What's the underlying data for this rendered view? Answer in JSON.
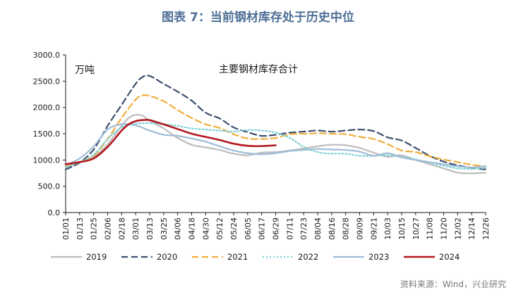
{
  "header": {
    "title": "图表 7：当前钢材库存处于历史中位"
  },
  "footer": {
    "source": "资料来源：Wind，兴业研究"
  },
  "colors": {
    "2019": "#bdbdbd",
    "2020": "#3d4f6e",
    "2021": "#f0ad3c",
    "2022": "#82d2d6",
    "2023": "#9fbcd6",
    "2024": "#b2171d",
    "axis": "#1a1a1a"
  },
  "chart_data": {
    "type": "line",
    "title": "主要钢材库存合计",
    "ylabel": "万吨",
    "xlabel": "",
    "ylim": [
      0,
      3000
    ],
    "yticks": [
      "0.0",
      "500.0",
      "1000.0",
      "1500.0",
      "2000.0",
      "2500.0",
      "3000.0"
    ],
    "yticks_values": [
      0,
      500,
      1000,
      1500,
      2000,
      2500,
      3000
    ],
    "categories": [
      "01/01",
      "01/13",
      "01/25",
      "02/06",
      "02/18",
      "03/01",
      "03/13",
      "03/25",
      "04/06",
      "04/18",
      "04/30",
      "05/12",
      "05/24",
      "06/05",
      "06/17",
      "06/29",
      "07/11",
      "07/23",
      "08/04",
      "08/16",
      "08/28",
      "09/09",
      "09/21",
      "10/03",
      "10/15",
      "10/27",
      "11/08",
      "11/20",
      "12/02",
      "12/14",
      "12/26"
    ],
    "grid": false,
    "legend": "bottom",
    "series": [
      {
        "name": "2019",
        "style": "solid",
        "x": [
          0,
          1,
          2,
          3,
          4,
          4.5,
          5,
          5.5,
          6,
          7,
          8,
          9,
          10,
          11,
          12,
          13,
          14,
          15,
          16,
          17,
          18,
          19,
          20,
          21,
          22,
          23,
          24,
          25,
          26,
          27,
          28,
          29,
          30
        ],
        "values": [
          850,
          950,
          1050,
          1300,
          1650,
          1800,
          1860,
          1840,
          1750,
          1600,
          1420,
          1290,
          1240,
          1190,
          1120,
          1090,
          1140,
          1150,
          1180,
          1220,
          1260,
          1290,
          1280,
          1230,
          1140,
          1060,
          1090,
          1000,
          920,
          840,
          760,
          745,
          760
        ]
      },
      {
        "name": "2020",
        "style": "dash",
        "x": [
          0,
          1,
          2,
          3,
          4,
          5,
          5.5,
          6,
          7,
          8,
          9,
          10,
          11,
          12,
          13,
          14,
          15,
          16,
          17,
          18,
          19,
          20,
          21,
          22,
          23,
          24,
          25,
          26,
          27,
          28,
          29,
          30
        ],
        "values": [
          820,
          950,
          1200,
          1650,
          2050,
          2450,
          2580,
          2600,
          2450,
          2300,
          2130,
          1900,
          1790,
          1620,
          1530,
          1460,
          1480,
          1520,
          1540,
          1560,
          1540,
          1560,
          1580,
          1550,
          1430,
          1370,
          1230,
          1080,
          970,
          900,
          850,
          820
        ]
      },
      {
        "name": "2021",
        "style": "dash",
        "x": [
          0,
          1,
          2,
          3,
          4,
          5,
          5.5,
          6,
          7,
          8,
          9,
          10,
          11,
          12,
          13,
          14,
          15,
          16,
          17,
          18,
          19,
          20,
          21,
          22,
          23,
          24,
          25,
          26,
          27,
          28,
          29,
          30
        ],
        "values": [
          870,
          960,
          1080,
          1400,
          1800,
          2150,
          2230,
          2220,
          2120,
          1950,
          1800,
          1680,
          1610,
          1490,
          1410,
          1400,
          1420,
          1490,
          1500,
          1510,
          1500,
          1490,
          1440,
          1400,
          1300,
          1180,
          1150,
          1070,
          1010,
          960,
          910,
          880
        ]
      },
      {
        "name": "2022",
        "style": "dot",
        "x": [
          0,
          1,
          2,
          3,
          4,
          5,
          6,
          7,
          8,
          9,
          10,
          11,
          12,
          13,
          14,
          15,
          16,
          17,
          18,
          19,
          20,
          21,
          22,
          23,
          24,
          25,
          26,
          27,
          28,
          29,
          30
        ],
        "values": [
          860,
          960,
          1100,
          1400,
          1620,
          1690,
          1700,
          1680,
          1650,
          1600,
          1580,
          1560,
          1540,
          1570,
          1560,
          1520,
          1420,
          1250,
          1150,
          1120,
          1120,
          1080,
          1080,
          1090,
          1060,
          1010,
          950,
          890,
          840,
          830,
          850
        ]
      },
      {
        "name": "2023",
        "style": "solid",
        "x": [
          0,
          1,
          2,
          3,
          4,
          5,
          6,
          7,
          8,
          9,
          10,
          11,
          12,
          13,
          14,
          15,
          16,
          17,
          18,
          19,
          20,
          21,
          22,
          23,
          24,
          25,
          26,
          27,
          28,
          29,
          30
        ],
        "values": [
          900,
          1030,
          1260,
          1580,
          1680,
          1660,
          1560,
          1480,
          1460,
          1410,
          1350,
          1260,
          1180,
          1130,
          1110,
          1130,
          1170,
          1190,
          1210,
          1200,
          1190,
          1160,
          1080,
          1130,
          1050,
          1000,
          960,
          920,
          880,
          860,
          880
        ]
      },
      {
        "name": "2024",
        "style": "solid",
        "x": [
          0,
          1,
          2,
          3,
          4,
          4.5,
          5,
          5.5,
          6,
          6.5,
          7,
          8,
          9,
          10,
          11,
          12,
          13,
          14,
          15
        ],
        "values": [
          920,
          960,
          1030,
          1250,
          1560,
          1680,
          1740,
          1760,
          1760,
          1720,
          1680,
          1590,
          1500,
          1440,
          1380,
          1310,
          1270,
          1265,
          1280
        ]
      }
    ]
  }
}
